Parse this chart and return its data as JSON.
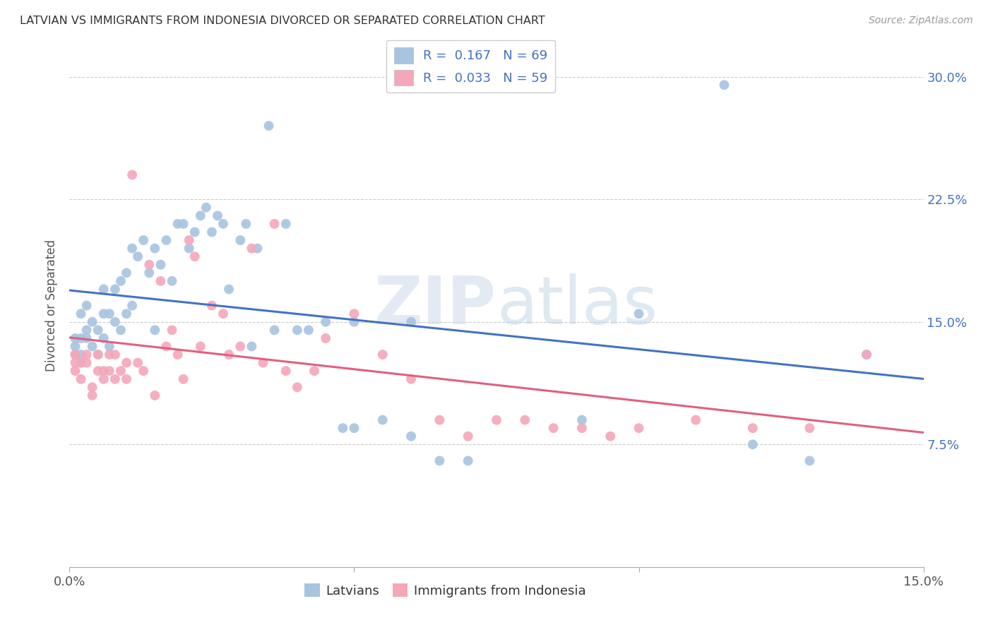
{
  "title": "LATVIAN VS IMMIGRANTS FROM INDONESIA DIVORCED OR SEPARATED CORRELATION CHART",
  "source": "Source: ZipAtlas.com",
  "ylabel": "Divorced or Separated",
  "xlim": [
    0.0,
    0.15
  ],
  "ylim": [
    0.0,
    0.32
  ],
  "watermark": "ZIPatlas",
  "latvian_R": 0.167,
  "latvian_N": 69,
  "indonesian_R": 0.033,
  "indonesian_N": 59,
  "latvian_color": "#a8c4e0",
  "indonesian_color": "#f4a7b9",
  "latvian_line_color": "#4472C4",
  "indonesian_line_color": "#e06080",
  "legend_latvians": "Latvians",
  "legend_indonesians": "Immigrants from Indonesia",
  "latvian_x": [
    0.001,
    0.001,
    0.001,
    0.002,
    0.002,
    0.002,
    0.002,
    0.003,
    0.003,
    0.003,
    0.004,
    0.004,
    0.005,
    0.005,
    0.006,
    0.006,
    0.006,
    0.007,
    0.007,
    0.008,
    0.008,
    0.009,
    0.009,
    0.01,
    0.01,
    0.011,
    0.011,
    0.012,
    0.013,
    0.014,
    0.015,
    0.015,
    0.016,
    0.017,
    0.018,
    0.019,
    0.02,
    0.021,
    0.022,
    0.023,
    0.024,
    0.025,
    0.026,
    0.027,
    0.028,
    0.03,
    0.031,
    0.032,
    0.033,
    0.035,
    0.036,
    0.038,
    0.04,
    0.042,
    0.045,
    0.048,
    0.05,
    0.055,
    0.06,
    0.065,
    0.07,
    0.09,
    0.1,
    0.115,
    0.12,
    0.13,
    0.14,
    0.05,
    0.06
  ],
  "latvian_y": [
    0.13,
    0.135,
    0.14,
    0.125,
    0.13,
    0.14,
    0.155,
    0.14,
    0.145,
    0.16,
    0.135,
    0.15,
    0.13,
    0.145,
    0.14,
    0.155,
    0.17,
    0.135,
    0.155,
    0.15,
    0.17,
    0.145,
    0.175,
    0.155,
    0.18,
    0.16,
    0.195,
    0.19,
    0.2,
    0.18,
    0.145,
    0.195,
    0.185,
    0.2,
    0.175,
    0.21,
    0.21,
    0.195,
    0.205,
    0.215,
    0.22,
    0.205,
    0.215,
    0.21,
    0.17,
    0.2,
    0.21,
    0.135,
    0.195,
    0.27,
    0.145,
    0.21,
    0.145,
    0.145,
    0.15,
    0.085,
    0.15,
    0.09,
    0.15,
    0.065,
    0.065,
    0.09,
    0.155,
    0.295,
    0.075,
    0.065,
    0.13,
    0.085,
    0.08
  ],
  "indonesian_x": [
    0.001,
    0.001,
    0.001,
    0.002,
    0.002,
    0.003,
    0.003,
    0.004,
    0.004,
    0.005,
    0.005,
    0.006,
    0.006,
    0.007,
    0.007,
    0.008,
    0.008,
    0.009,
    0.01,
    0.01,
    0.011,
    0.012,
    0.013,
    0.014,
    0.015,
    0.016,
    0.017,
    0.018,
    0.019,
    0.02,
    0.021,
    0.022,
    0.023,
    0.025,
    0.027,
    0.028,
    0.03,
    0.032,
    0.034,
    0.036,
    0.038,
    0.04,
    0.043,
    0.045,
    0.05,
    0.055,
    0.06,
    0.065,
    0.07,
    0.075,
    0.08,
    0.085,
    0.09,
    0.095,
    0.1,
    0.11,
    0.12,
    0.13,
    0.14
  ],
  "indonesian_y": [
    0.12,
    0.125,
    0.13,
    0.115,
    0.125,
    0.125,
    0.13,
    0.105,
    0.11,
    0.12,
    0.13,
    0.115,
    0.12,
    0.12,
    0.13,
    0.115,
    0.13,
    0.12,
    0.115,
    0.125,
    0.24,
    0.125,
    0.12,
    0.185,
    0.105,
    0.175,
    0.135,
    0.145,
    0.13,
    0.115,
    0.2,
    0.19,
    0.135,
    0.16,
    0.155,
    0.13,
    0.135,
    0.195,
    0.125,
    0.21,
    0.12,
    0.11,
    0.12,
    0.14,
    0.155,
    0.13,
    0.115,
    0.09,
    0.08,
    0.09,
    0.09,
    0.085,
    0.085,
    0.08,
    0.085,
    0.09,
    0.085,
    0.085,
    0.13
  ]
}
